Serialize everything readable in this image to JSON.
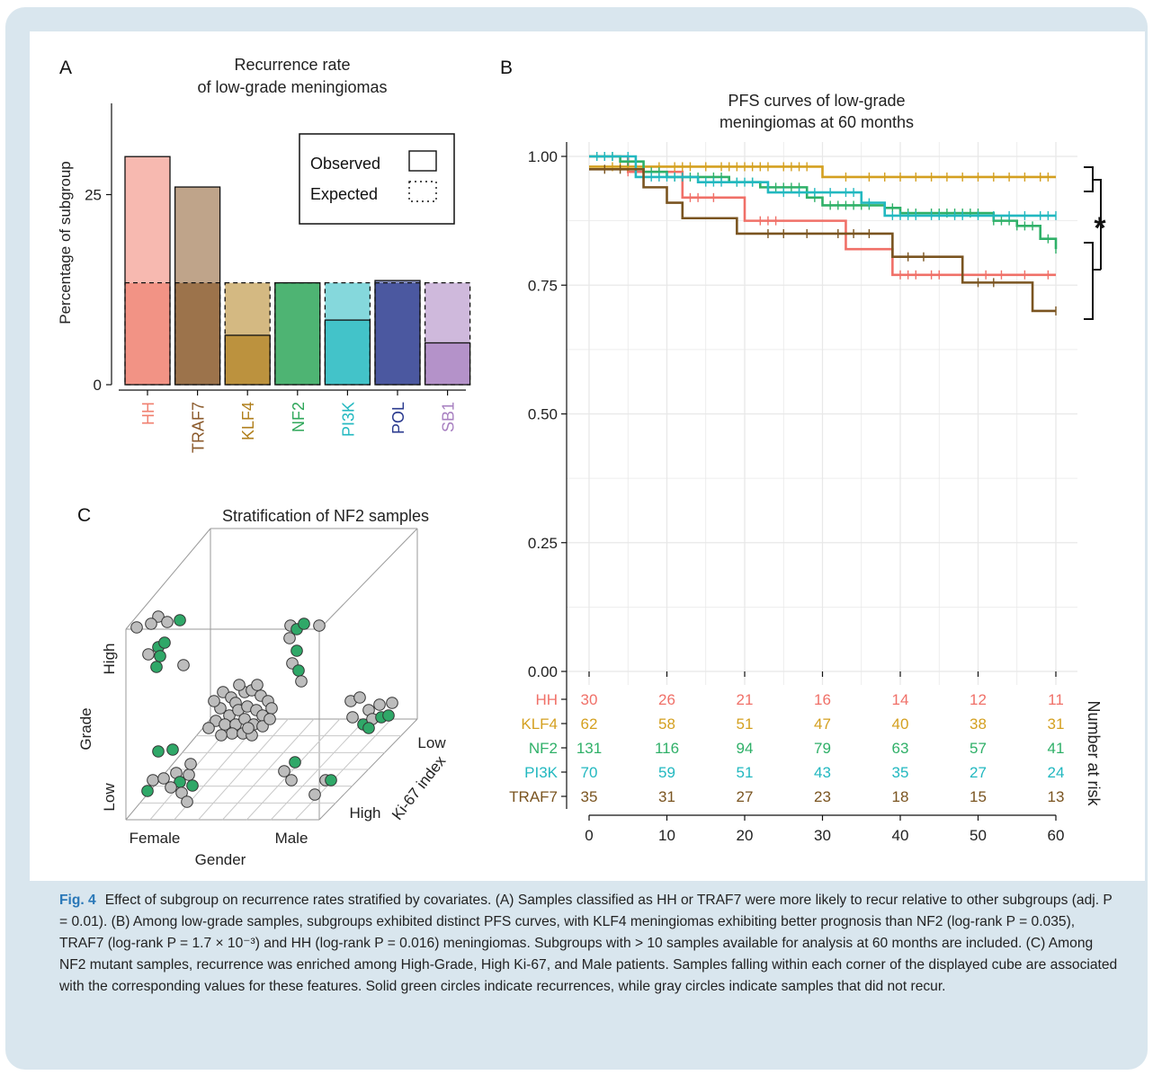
{
  "chart_data": [
    {
      "panel": "A",
      "type": "bar",
      "title": "Recurrence rate\nof low-grade meningiomas",
      "ylabel": "Percentage of subgroup",
      "xlabel": "",
      "yticks": [
        0,
        25
      ],
      "ylim": [
        0,
        37
      ],
      "categories": [
        "HH",
        "TRAF7",
        "KLF4",
        "NF2",
        "PI3K",
        "POL",
        "SB1"
      ],
      "category_colors": [
        "#f08070",
        "#8b5a2b",
        "#b07f1c",
        "#2fa75a",
        "#22b8c0",
        "#2b3b8f",
        "#a77fc0"
      ],
      "series": [
        {
          "name": "Observed",
          "values": [
            30,
            26,
            6.5,
            13.4,
            8.5,
            13.7,
            5.5
          ]
        },
        {
          "name": "Expected",
          "values": [
            13.4,
            13.4,
            13.4,
            13.4,
            13.4,
            13.4,
            13.4
          ]
        }
      ],
      "legend": {
        "placement": "top-right",
        "entries": [
          "Observed",
          "Expected"
        ]
      },
      "grid": false
    },
    {
      "panel": "B",
      "type": "line",
      "title": "PFS curves of low-grade\nmeningiomas at 60 months",
      "xlabel": "",
      "ylabel": "",
      "xticks": [
        0,
        10,
        20,
        30,
        40,
        50,
        60
      ],
      "yticks": [
        "0.00",
        "0.25",
        "0.50",
        "0.75",
        "1.00"
      ],
      "ylim": [
        0,
        1
      ],
      "xlim": [
        0,
        60
      ],
      "grid": true,
      "significance_mark": "*",
      "series": [
        {
          "name": "HH",
          "color": "#f07068",
          "steps": [
            [
              0,
              1.0
            ],
            [
              5,
              0.97
            ],
            [
              12,
              0.92
            ],
            [
              20,
              0.875
            ],
            [
              33,
              0.82
            ],
            [
              39,
              0.77
            ],
            [
              60,
              0.77
            ]
          ],
          "censor": [
            5,
            6,
            7,
            9,
            13,
            14,
            16,
            22,
            23,
            24,
            40,
            41,
            42,
            44,
            45,
            48,
            51,
            53,
            56,
            59
          ]
        },
        {
          "name": "KLF4",
          "color": "#d4a020",
          "steps": [
            [
              0,
              0.98
            ],
            [
              30,
              0.96
            ],
            [
              60,
              0.96
            ]
          ],
          "censor": [
            3,
            4,
            5,
            6,
            7,
            9,
            11,
            12,
            13,
            15,
            17,
            18,
            19,
            20,
            21,
            22,
            23,
            25,
            26,
            27,
            28,
            33,
            36,
            38,
            40,
            42,
            44,
            46,
            48,
            50,
            52,
            54,
            56,
            58,
            59
          ]
        },
        {
          "name": "NF2",
          "color": "#2fb068",
          "steps": [
            [
              0,
              1.0
            ],
            [
              4,
              0.99
            ],
            [
              7,
              0.97
            ],
            [
              10,
              0.96
            ],
            [
              18,
              0.95
            ],
            [
              22,
              0.94
            ],
            [
              28,
              0.92
            ],
            [
              30,
              0.905
            ],
            [
              38,
              0.9
            ],
            [
              40,
              0.89
            ],
            [
              52,
              0.875
            ],
            [
              55,
              0.865
            ],
            [
              58,
              0.84
            ],
            [
              60,
              0.82
            ]
          ],
          "censor": [
            1,
            2,
            3,
            5,
            6,
            8,
            9,
            11,
            12,
            13,
            14,
            16,
            17,
            19,
            21,
            23,
            24,
            25,
            26,
            27,
            29,
            31,
            32,
            33,
            34,
            35,
            36,
            38,
            39,
            41,
            42,
            44,
            45,
            46,
            47,
            48,
            49,
            50,
            52,
            53,
            54,
            55,
            56,
            57,
            59,
            60
          ]
        },
        {
          "name": "PI3K",
          "color": "#22b8c0",
          "steps": [
            [
              0,
              1.0
            ],
            [
              6,
              0.96
            ],
            [
              14,
              0.95
            ],
            [
              23,
              0.93
            ],
            [
              35,
              0.91
            ],
            [
              38,
              0.885
            ],
            [
              60,
              0.885
            ]
          ],
          "censor": [
            1,
            2,
            3,
            5,
            8,
            9,
            10,
            11,
            12,
            15,
            16,
            17,
            19,
            20,
            21,
            25,
            27,
            29,
            31,
            33,
            34,
            36,
            39,
            40,
            41,
            42,
            44,
            45,
            47,
            48,
            50,
            52,
            54,
            56,
            58,
            59,
            60
          ]
        },
        {
          "name": "TRAF7",
          "color": "#7a5420",
          "steps": [
            [
              0,
              0.975
            ],
            [
              7,
              0.94
            ],
            [
              10,
              0.91
            ],
            [
              12,
              0.88
            ],
            [
              19,
              0.85
            ],
            [
              39,
              0.805
            ],
            [
              48,
              0.755
            ],
            [
              57,
              0.7
            ],
            [
              60,
              0.7
            ]
          ],
          "censor": [
            2,
            4,
            23,
            25,
            28,
            32,
            34,
            36,
            41,
            43,
            50,
            52,
            60
          ]
        }
      ],
      "risk_table": {
        "title": "Number at risk",
        "time_points": [
          0,
          10,
          20,
          30,
          40,
          50,
          60
        ],
        "rows": [
          {
            "name": "HH",
            "color": "#f07068",
            "values": [
              "30",
              "26",
              "21",
              "16",
              "14",
              "12",
              "11"
            ]
          },
          {
            "name": "KLF4",
            "color": "#d4a020",
            "values": [
              "62",
              "58",
              "51",
              "47",
              "40",
              "38",
              "31"
            ]
          },
          {
            "name": "NF2",
            "color": "#2fb068",
            "values": [
              "131",
              "116",
              "94",
              "79",
              "63",
              "57",
              "41"
            ]
          },
          {
            "name": "PI3K",
            "color": "#22b8c0",
            "values": [
              "70",
              "59",
              "51",
              "43",
              "35",
              "27",
              "24"
            ]
          },
          {
            "name": "TRAF7",
            "color": "#7a5420",
            "values": [
              "35",
              "31",
              "27",
              "23",
              "18",
              "15",
              "13"
            ]
          }
        ]
      }
    },
    {
      "panel": "C",
      "type": "scatter",
      "title": "Stratification of NF2 samples",
      "axes": {
        "x": {
          "label": "Gender",
          "ticks": [
            "Female",
            "Male"
          ]
        },
        "y": {
          "label": "Grade",
          "ticks": [
            "Low",
            "High"
          ]
        },
        "z": {
          "label": "Ki-67 index",
          "ticks": [
            "Low",
            "High"
          ]
        }
      },
      "legend_colors": {
        "recurrence": "#2fa868",
        "no_recurrence": "#bdbdbd"
      },
      "grid": true
    }
  ],
  "panel_labels": {
    "a": "A",
    "b": "B",
    "c": "C"
  },
  "panel_a_legend": {
    "observed": "Observed",
    "expected": "Expected"
  },
  "caption": {
    "label": "Fig. 4",
    "text": "Effect of subgroup on recurrence rates stratified by covariates. (A) Samples classified as HH or TRAF7 were more likely to recur relative to other subgroups (adj. P = 0.01). (B) Among low-grade samples, subgroups exhibited distinct PFS curves, with KLF4 meningiomas exhibiting better prognosis than NF2 (log-rank P = 0.035), TRAF7 (log-rank P = 1.7 × 10⁻³) and HH (log-rank P = 0.016) meningiomas. Subgroups with > 10 samples available for analysis at 60 months are included. (C) Among NF2 mutant samples, recurrence was enriched among High-Grade, High Ki-67, and Male patients. Samples falling within each corner of the displayed cube are associated with the corresponding values for these features. Solid green circles indicate recurrences, while gray circles indicate samples that did not recur."
  }
}
